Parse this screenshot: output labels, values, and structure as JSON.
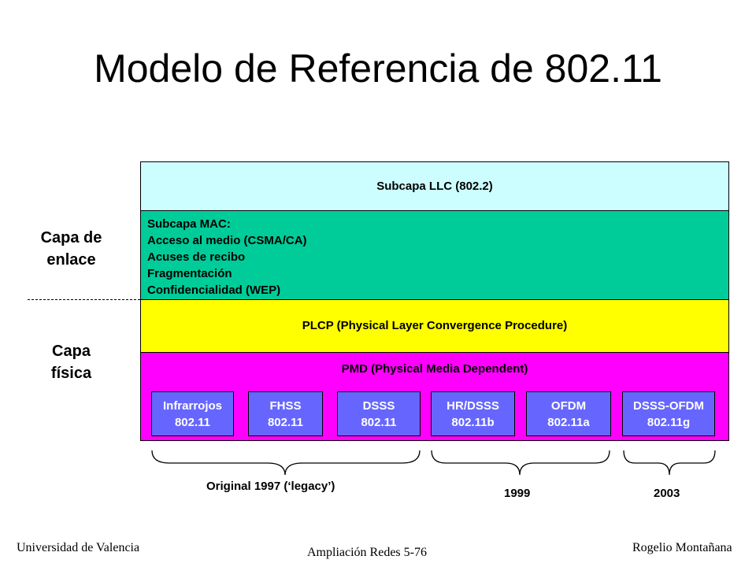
{
  "title": "Modelo de Referencia de 802.11",
  "left_labels": {
    "link": [
      "Capa de",
      "enlace"
    ],
    "physical": [
      "Capa",
      "física"
    ]
  },
  "layers": {
    "llc": "Subcapa LLC (802.2)",
    "mac": [
      "Subcapa MAC:",
      "Acceso al medio (CSMA/CA)",
      "Acuses de recibo",
      "Fragmentación",
      "Confidencialidad (WEP)"
    ],
    "plcp": "PLCP (Physical Layer Convergence Procedure)",
    "pmd": "PMD (Physical Media Dependent)"
  },
  "pmd_boxes": [
    {
      "name": "Infrarrojos",
      "std": "802.11"
    },
    {
      "name": "FHSS",
      "std": "802.11"
    },
    {
      "name": "DSSS",
      "std": "802.11"
    },
    {
      "name": "HR/DSSS",
      "std": "802.11b"
    },
    {
      "name": "OFDM",
      "std": "802.11a"
    },
    {
      "name": "DSSS-OFDM",
      "std": "802.11g"
    }
  ],
  "braces": {
    "original": "Original 1997 (‘legacy’)",
    "y1999": "1999",
    "y2003": "2003"
  },
  "footer": {
    "left": "Universidad de Valencia",
    "center": "Ampliación Redes 5-76",
    "right": "Rogelio Montañana"
  },
  "colors": {
    "llc": "#ccfeff",
    "mac": "#00cc99",
    "plcp": "#ffff00",
    "pmd": "#ff00ff",
    "box": "#6666ff"
  }
}
